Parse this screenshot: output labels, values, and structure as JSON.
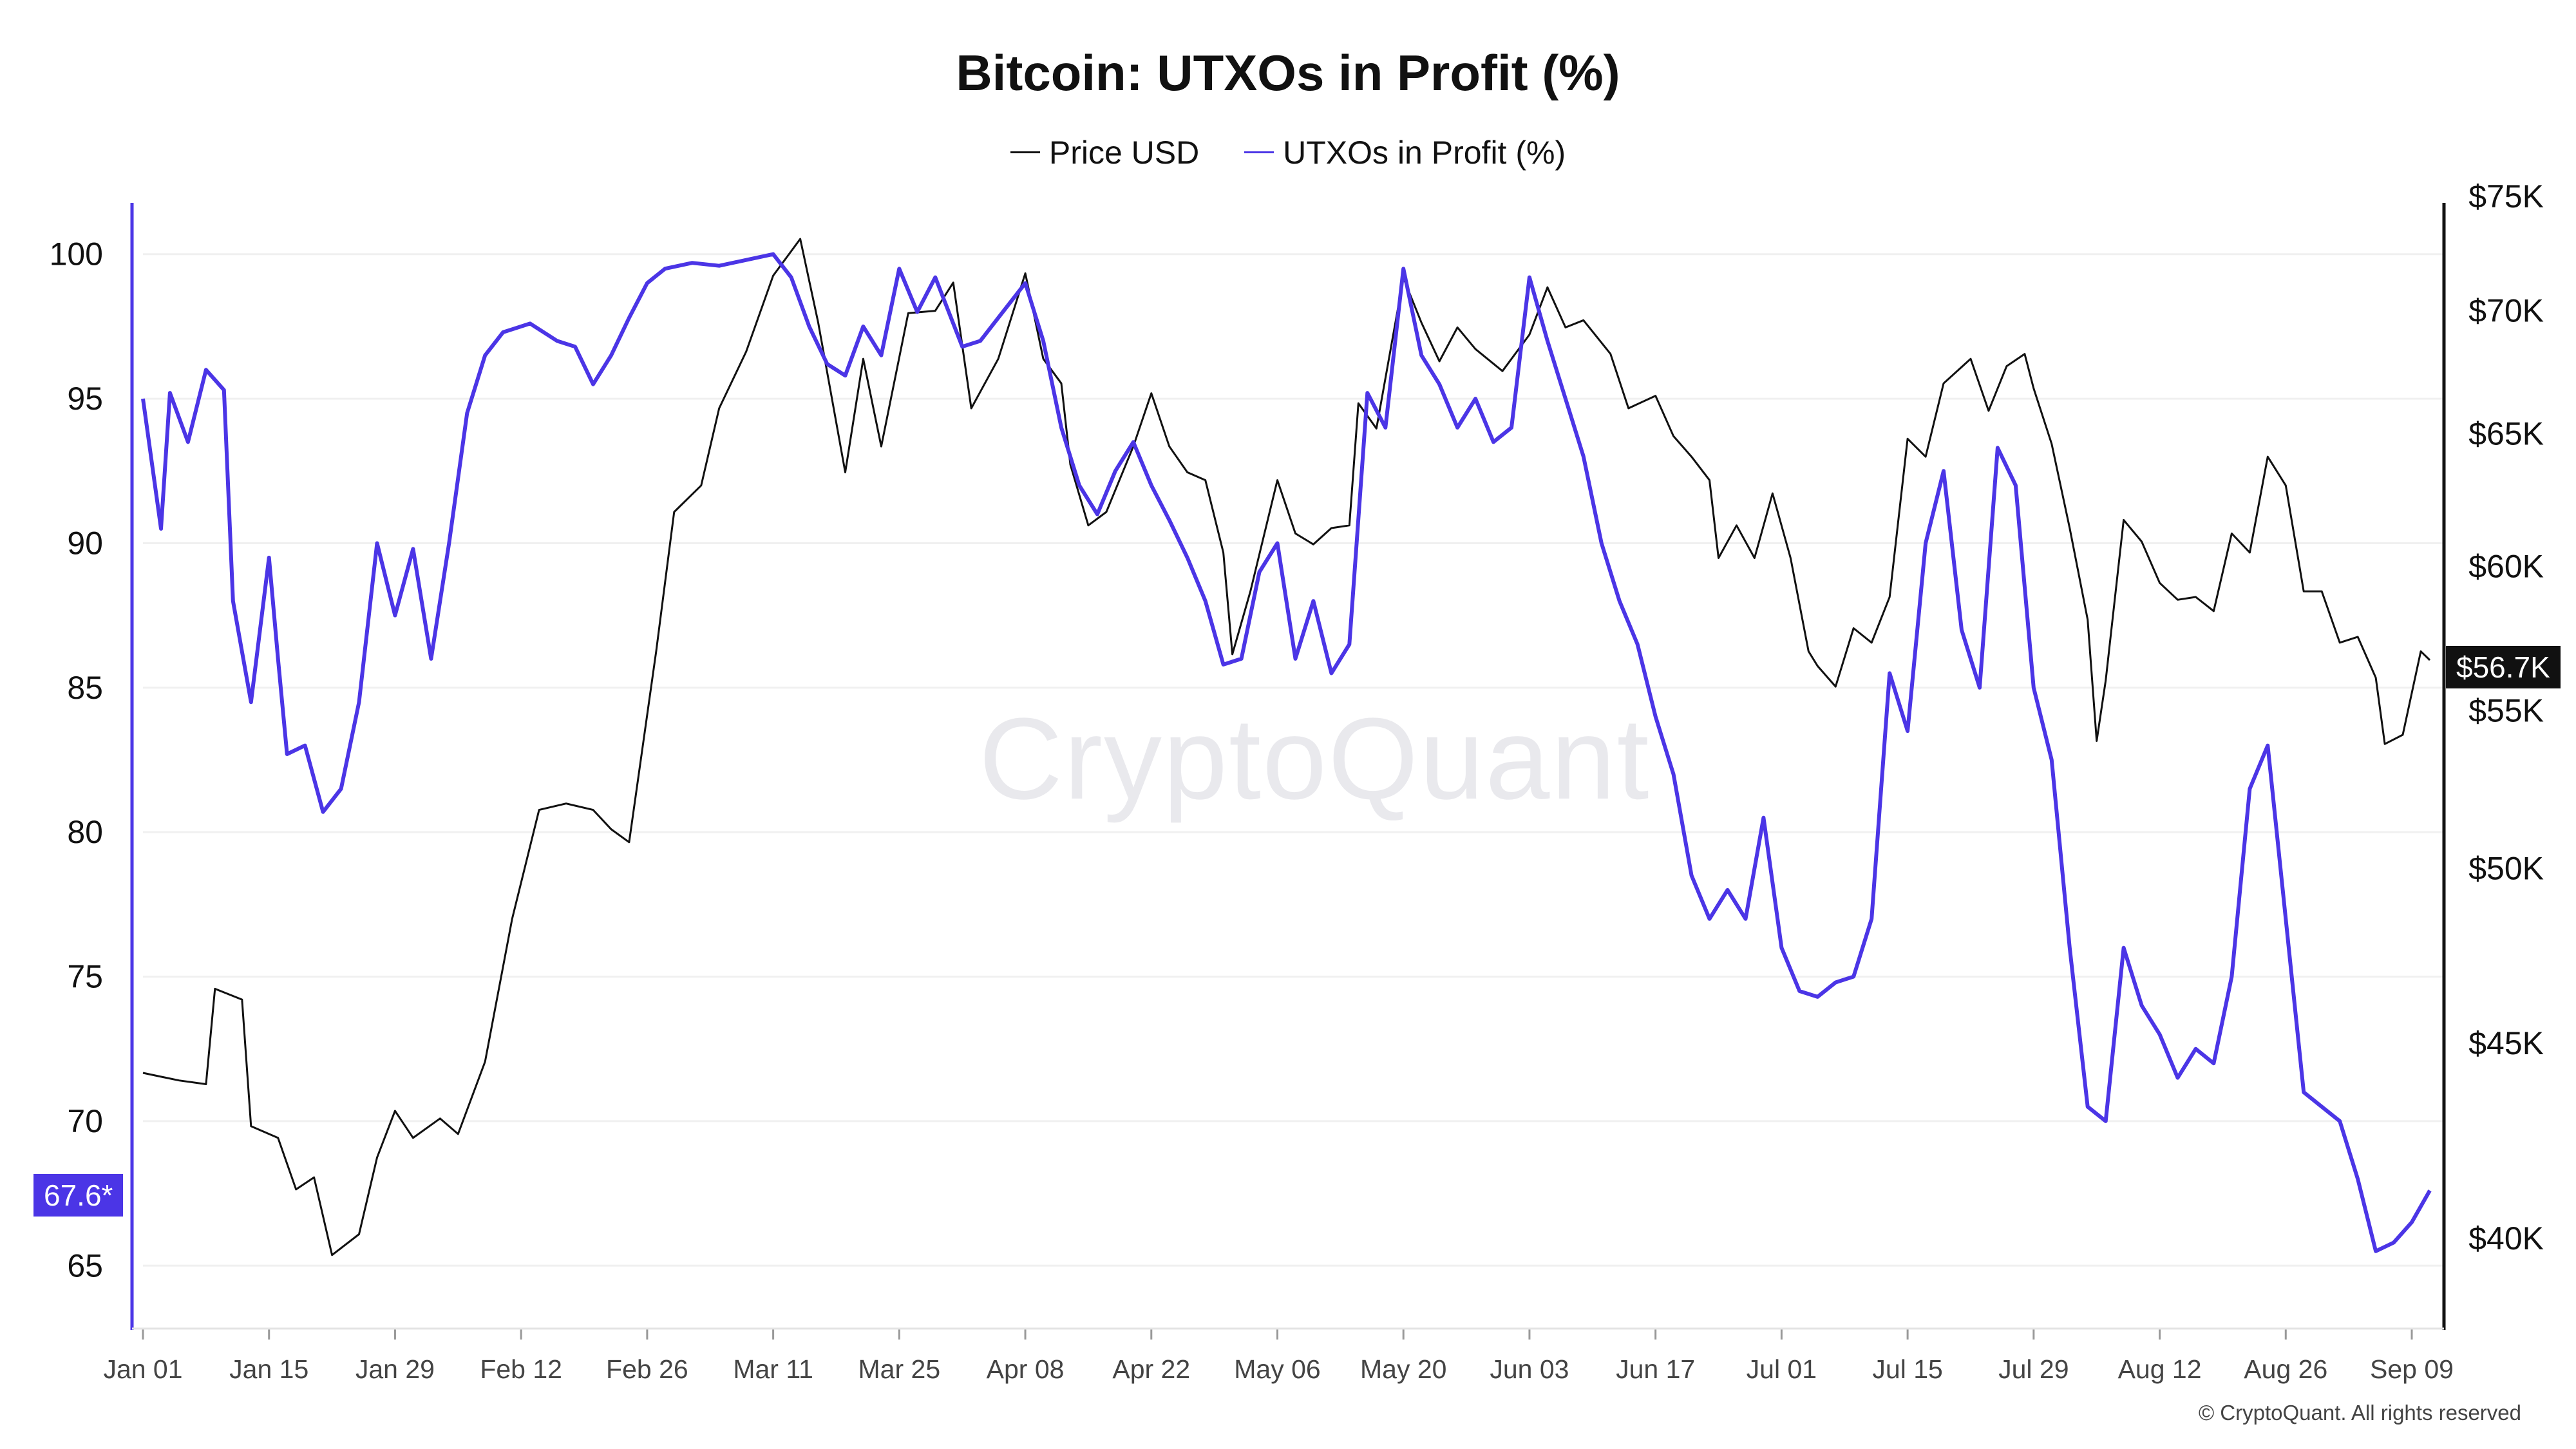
{
  "chart_data": {
    "type": "line",
    "title": "Bitcoin: UTXOs in Profit (%)",
    "legend_position": "top-center",
    "grid": true,
    "x_ticks": [
      "Jan 01",
      "Jan 15",
      "Jan 29",
      "Feb 12",
      "Feb 26",
      "Mar 11",
      "Mar 25",
      "Apr 08",
      "Apr 22",
      "May 06",
      "May 20",
      "Jun 03",
      "Jun 17",
      "Jul 01",
      "Jul 15",
      "Jul 29",
      "Aug 12",
      "Aug 26",
      "Sep 09"
    ],
    "left_axis": {
      "ticks": [
        "65",
        "70",
        "75",
        "80",
        "85",
        "90",
        "95",
        "100"
      ],
      "ylim": [
        63,
        102
      ]
    },
    "right_axis": {
      "ticks": [
        "$40K",
        "$45K",
        "$50K",
        "$55K",
        "$60K",
        "$65K",
        "$70K",
        "$75K"
      ],
      "ylim": [
        38000,
        75000
      ],
      "scale": "log"
    },
    "series": [
      {
        "name": "Price USD",
        "axis": "right",
        "color": "#111111",
        "points": [
          [
            "Jan 01",
            44200
          ],
          [
            "Jan 05",
            44000
          ],
          [
            "Jan 08",
            43900
          ],
          [
            "Jan 09",
            46500
          ],
          [
            "Jan 12",
            46200
          ],
          [
            "Jan 13",
            42800
          ],
          [
            "Jan 16",
            42500
          ],
          [
            "Jan 18",
            41200
          ],
          [
            "Jan 20",
            41500
          ],
          [
            "Jan 22",
            39600
          ],
          [
            "Jan 25",
            40100
          ],
          [
            "Jan 27",
            42000
          ],
          [
            "Jan 29",
            43200
          ],
          [
            "Jan 31",
            42500
          ],
          [
            "Feb 03",
            43000
          ],
          [
            "Feb 05",
            42600
          ],
          [
            "Feb 08",
            44500
          ],
          [
            "Feb 11",
            48500
          ],
          [
            "Feb 14",
            51800
          ],
          [
            "Feb 17",
            52000
          ],
          [
            "Feb 20",
            51800
          ],
          [
            "Feb 22",
            51200
          ],
          [
            "Feb 24",
            50800
          ],
          [
            "Feb 27",
            57000
          ],
          [
            "Feb 29",
            62000
          ],
          [
            "Mar 03",
            63000
          ],
          [
            "Mar 05",
            66000
          ],
          [
            "Mar 08",
            68300
          ],
          [
            "Mar 11",
            71500
          ],
          [
            "Mar 14",
            73100
          ],
          [
            "Mar 16",
            69500
          ],
          [
            "Mar 19",
            63500
          ],
          [
            "Mar 21",
            68000
          ],
          [
            "Mar 23",
            64500
          ],
          [
            "Mar 26",
            69900
          ],
          [
            "Mar 29",
            70000
          ],
          [
            "Mar 31",
            71200
          ],
          [
            "Apr 02",
            66000
          ],
          [
            "Apr 05",
            68000
          ],
          [
            "Apr 08",
            71600
          ],
          [
            "Apr 10",
            68000
          ],
          [
            "Apr 12",
            67000
          ],
          [
            "Apr 13",
            63800
          ],
          [
            "Apr 15",
            61500
          ],
          [
            "Apr 17",
            62000
          ],
          [
            "Apr 20",
            64500
          ],
          [
            "Apr 22",
            66600
          ],
          [
            "Apr 24",
            64500
          ],
          [
            "Apr 26",
            63500
          ],
          [
            "Apr 28",
            63200
          ],
          [
            "Apr 30",
            60500
          ],
          [
            "May 01",
            56900
          ],
          [
            "May 03",
            59100
          ],
          [
            "May 06",
            63200
          ],
          [
            "May 08",
            61200
          ],
          [
            "May 10",
            60800
          ],
          [
            "May 12",
            61400
          ],
          [
            "May 14",
            61500
          ],
          [
            "May 15",
            66200
          ],
          [
            "May 17",
            65200
          ],
          [
            "May 20",
            71400
          ],
          [
            "May 22",
            69500
          ],
          [
            "May 24",
            67900
          ],
          [
            "May 26",
            69300
          ],
          [
            "May 28",
            68400
          ],
          [
            "May 31",
            67500
          ],
          [
            "Jun 03",
            69000
          ],
          [
            "Jun 05",
            71000
          ],
          [
            "Jun 07",
            69300
          ],
          [
            "Jun 09",
            69600
          ],
          [
            "Jun 12",
            68200
          ],
          [
            "Jun 14",
            66000
          ],
          [
            "Jun 17",
            66500
          ],
          [
            "Jun 19",
            64900
          ],
          [
            "Jun 21",
            64100
          ],
          [
            "Jun 23",
            63200
          ],
          [
            "Jun 24",
            60300
          ],
          [
            "Jun 26",
            61500
          ],
          [
            "Jun 28",
            60300
          ],
          [
            "Jun 30",
            62700
          ],
          [
            "Jul 02",
            60300
          ],
          [
            "Jul 04",
            57000
          ],
          [
            "Jul 05",
            56500
          ],
          [
            "Jul 07",
            55800
          ],
          [
            "Jul 09",
            57800
          ],
          [
            "Jul 11",
            57300
          ],
          [
            "Jul 13",
            58900
          ],
          [
            "Jul 15",
            64800
          ],
          [
            "Jul 17",
            64100
          ],
          [
            "Jul 19",
            67000
          ],
          [
            "Jul 22",
            68000
          ],
          [
            "Jul 24",
            65900
          ],
          [
            "Jul 26",
            67700
          ],
          [
            "Jul 28",
            68200
          ],
          [
            "Jul 29",
            66800
          ],
          [
            "Jul 31",
            64600
          ],
          [
            "Aug 02",
            61400
          ],
          [
            "Aug 04",
            58100
          ],
          [
            "Aug 05",
            54000
          ],
          [
            "Aug 06",
            56000
          ],
          [
            "Aug 08",
            61700
          ],
          [
            "Aug 10",
            60900
          ],
          [
            "Aug 12",
            59400
          ],
          [
            "Aug 14",
            58800
          ],
          [
            "Aug 16",
            58900
          ],
          [
            "Aug 18",
            58400
          ],
          [
            "Aug 20",
            61200
          ],
          [
            "Aug 22",
            60500
          ],
          [
            "Aug 24",
            64100
          ],
          [
            "Aug 26",
            63000
          ],
          [
            "Aug 28",
            59100
          ],
          [
            "Aug 30",
            59100
          ],
          [
            "Sep 01",
            57300
          ],
          [
            "Sep 03",
            57500
          ],
          [
            "Sep 05",
            56100
          ],
          [
            "Sep 06",
            53900
          ],
          [
            "Sep 08",
            54200
          ],
          [
            "Sep 10",
            57000
          ],
          [
            "Sep 11",
            56700
          ]
        ]
      },
      {
        "name": "UTXOs in Profit (%)",
        "axis": "left",
        "color": "#4b35e6",
        "points": [
          [
            "Jan 01",
            95.0
          ],
          [
            "Jan 03",
            90.5
          ],
          [
            "Jan 04",
            95.2
          ],
          [
            "Jan 06",
            93.5
          ],
          [
            "Jan 08",
            96.0
          ],
          [
            "Jan 10",
            95.3
          ],
          [
            "Jan 11",
            88.0
          ],
          [
            "Jan 13",
            84.5
          ],
          [
            "Jan 15",
            89.5
          ],
          [
            "Jan 16",
            86.0
          ],
          [
            "Jan 17",
            82.7
          ],
          [
            "Jan 19",
            83.0
          ],
          [
            "Jan 21",
            80.7
          ],
          [
            "Jan 23",
            81.5
          ],
          [
            "Jan 25",
            84.5
          ],
          [
            "Jan 27",
            90.0
          ],
          [
            "Jan 29",
            87.5
          ],
          [
            "Jan 31",
            89.8
          ],
          [
            "Feb 02",
            86.0
          ],
          [
            "Feb 04",
            90.0
          ],
          [
            "Feb 06",
            94.5
          ],
          [
            "Feb 08",
            96.5
          ],
          [
            "Feb 10",
            97.3
          ],
          [
            "Feb 13",
            97.6
          ],
          [
            "Feb 16",
            97.0
          ],
          [
            "Feb 18",
            96.8
          ],
          [
            "Feb 20",
            95.5
          ],
          [
            "Feb 22",
            96.5
          ],
          [
            "Feb 24",
            97.8
          ],
          [
            "Feb 26",
            99.0
          ],
          [
            "Feb 28",
            99.5
          ],
          [
            "Mar 02",
            99.7
          ],
          [
            "Mar 05",
            99.6
          ],
          [
            "Mar 08",
            99.8
          ],
          [
            "Mar 11",
            100.0
          ],
          [
            "Mar 13",
            99.2
          ],
          [
            "Mar 15",
            97.5
          ],
          [
            "Mar 17",
            96.2
          ],
          [
            "Mar 19",
            95.8
          ],
          [
            "Mar 21",
            97.5
          ],
          [
            "Mar 23",
            96.5
          ],
          [
            "Mar 25",
            99.5
          ],
          [
            "Mar 27",
            98.0
          ],
          [
            "Mar 29",
            99.2
          ],
          [
            "Apr 01",
            96.8
          ],
          [
            "Apr 03",
            97.0
          ],
          [
            "Apr 05",
            97.8
          ],
          [
            "Apr 08",
            99.0
          ],
          [
            "Apr 10",
            97.0
          ],
          [
            "Apr 12",
            94.0
          ],
          [
            "Apr 14",
            92.0
          ],
          [
            "Apr 16",
            91.0
          ],
          [
            "Apr 18",
            92.5
          ],
          [
            "Apr 20",
            93.5
          ],
          [
            "Apr 22",
            92.0
          ],
          [
            "Apr 24",
            90.8
          ],
          [
            "Apr 26",
            89.5
          ],
          [
            "Apr 28",
            88.0
          ],
          [
            "Apr 30",
            85.8
          ],
          [
            "May 02",
            86.0
          ],
          [
            "May 04",
            89.0
          ],
          [
            "May 06",
            90.0
          ],
          [
            "May 08",
            86.0
          ],
          [
            "May 10",
            88.0
          ],
          [
            "May 12",
            85.5
          ],
          [
            "May 14",
            86.5
          ],
          [
            "May 16",
            95.2
          ],
          [
            "May 18",
            94.0
          ],
          [
            "May 20",
            99.5
          ],
          [
            "May 22",
            96.5
          ],
          [
            "May 24",
            95.5
          ],
          [
            "May 26",
            94.0
          ],
          [
            "May 28",
            95.0
          ],
          [
            "May 30",
            93.5
          ],
          [
            "Jun 01",
            94.0
          ],
          [
            "Jun 03",
            99.2
          ],
          [
            "Jun 05",
            97.0
          ],
          [
            "Jun 07",
            95.0
          ],
          [
            "Jun 09",
            93.0
          ],
          [
            "Jun 11",
            90.0
          ],
          [
            "Jun 13",
            88.0
          ],
          [
            "Jun 15",
            86.5
          ],
          [
            "Jun 17",
            84.0
          ],
          [
            "Jun 19",
            82.0
          ],
          [
            "Jun 21",
            78.5
          ],
          [
            "Jun 23",
            77.0
          ],
          [
            "Jun 25",
            78.0
          ],
          [
            "Jun 27",
            77.0
          ],
          [
            "Jun 29",
            80.5
          ],
          [
            "Jul 01",
            76.0
          ],
          [
            "Jul 03",
            74.5
          ],
          [
            "Jul 05",
            74.3
          ],
          [
            "Jul 07",
            74.8
          ],
          [
            "Jul 09",
            75.0
          ],
          [
            "Jul 11",
            77.0
          ],
          [
            "Jul 13",
            85.5
          ],
          [
            "Jul 15",
            83.5
          ],
          [
            "Jul 17",
            90.0
          ],
          [
            "Jul 19",
            92.5
          ],
          [
            "Jul 21",
            87.0
          ],
          [
            "Jul 23",
            85.0
          ],
          [
            "Jul 25",
            93.3
          ],
          [
            "Jul 27",
            92.0
          ],
          [
            "Jul 29",
            85.0
          ],
          [
            "Jul 31",
            82.5
          ],
          [
            "Aug 02",
            76.0
          ],
          [
            "Aug 04",
            70.5
          ],
          [
            "Aug 06",
            70.0
          ],
          [
            "Aug 08",
            76.0
          ],
          [
            "Aug 10",
            74.0
          ],
          [
            "Aug 12",
            73.0
          ],
          [
            "Aug 14",
            71.5
          ],
          [
            "Aug 16",
            72.5
          ],
          [
            "Aug 18",
            72.0
          ],
          [
            "Aug 20",
            75.0
          ],
          [
            "Aug 22",
            81.5
          ],
          [
            "Aug 24",
            83.0
          ],
          [
            "Aug 26",
            77.0
          ],
          [
            "Aug 28",
            71.0
          ],
          [
            "Aug 30",
            70.5
          ],
          [
            "Sep 01",
            70.0
          ],
          [
            "Sep 03",
            68.0
          ],
          [
            "Sep 05",
            65.5
          ],
          [
            "Sep 07",
            65.8
          ],
          [
            "Sep 09",
            66.5
          ],
          [
            "Sep 11",
            67.6
          ]
        ]
      }
    ],
    "last_values": {
      "left": "67.6*",
      "right": "$56.7K"
    }
  },
  "watermark": "CryptoQuant",
  "copyright": "© CryptoQuant. All rights reserved",
  "colors": {
    "price": "#111111",
    "utxo": "#4b35e6",
    "grid": "#f0f0f0",
    "axis": "#111111"
  }
}
